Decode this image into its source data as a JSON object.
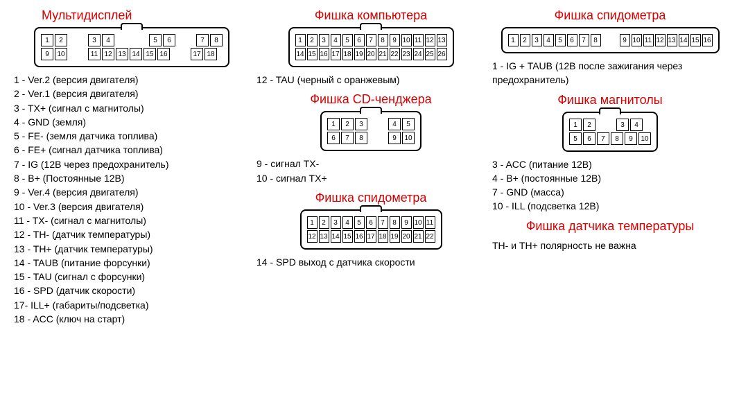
{
  "colors": {
    "title": "#d80000",
    "text": "#000000",
    "bg": "#ffffff"
  },
  "fonts": {
    "title_size_pt": 14,
    "body_size_pt": 11
  },
  "multidisplay": {
    "title": "Мультидисплей",
    "connector": {
      "type": "connector",
      "rows": [
        [
          "1",
          "2",
          "",
          "3",
          "4",
          "",
          "",
          "5",
          "6",
          "",
          "7",
          "8"
        ],
        [
          "9",
          "10",
          "",
          "11",
          "12",
          "13",
          "14",
          "15",
          "16",
          "",
          "17",
          "18"
        ]
      ],
      "row_gaps": [
        [
          2,
          6,
          9
        ],
        [
          2,
          9
        ]
      ]
    },
    "pins": [
      "1 - Ver.2 (версия двигателя)",
      "2 - Ver.1 (версия двигателя)",
      "3 - TX+ (сигнал с магнитолы)",
      "4 - GND (земля)",
      "5 - FE- (земля датчика топлива)",
      "6 - FE+ (сигнал датчика топлива)",
      "7 - IG (12В через предохранитель)",
      "8 - B+ (Постоянные 12В)",
      "9 - Ver.4 (версия двигателя)",
      "10 - Ver.3 (версия двигателя)",
      "11 - TX- (сигнал с магнитолы)",
      "12 - TH- (датчик температуры)",
      "13 - TH+ (датчик температуры)",
      "14 - TAUB (питание форсунки)",
      "15 - TAU (сигнал с форсунки)",
      "16 - SPD (датчик скорости)",
      "17- ILL+ (габариты/подсветка)",
      "18 - ACC (ключ на старт)"
    ]
  },
  "computer": {
    "title": "Фишка компьютера",
    "connector": {
      "type": "connector",
      "rows": [
        [
          "1",
          "2",
          "3",
          "4",
          "5",
          "6",
          "7",
          "8",
          "9",
          "10",
          "11",
          "12",
          "13"
        ],
        [
          "14",
          "15",
          "16",
          "17",
          "18",
          "19",
          "20",
          "21",
          "22",
          "23",
          "24",
          "25",
          "26"
        ]
      ]
    },
    "pins": [
      "12 - TAU (черный с оранжевым)"
    ]
  },
  "cdchanger": {
    "title": "Фишка CD-ченджера",
    "connector": {
      "type": "connector",
      "rows": [
        [
          "1",
          "2",
          "3",
          "",
          "4",
          "5"
        ],
        [
          "6",
          "7",
          "8",
          "",
          "9",
          "10"
        ]
      ],
      "row_gaps": [
        [
          3
        ],
        [
          3
        ]
      ]
    },
    "pins": [
      "9 - сигнал TX-",
      "10 - сигнал TX+"
    ]
  },
  "speedo_b": {
    "title": "Фишка спидометра",
    "connector": {
      "type": "connector",
      "rows": [
        [
          "1",
          "2",
          "3",
          "4",
          "5",
          "6",
          "7",
          "8",
          "9",
          "10",
          "11"
        ],
        [
          "12",
          "13",
          "14",
          "15",
          "16",
          "17",
          "18",
          "19",
          "20",
          "21",
          "22"
        ]
      ]
    },
    "pins": [
      "14 - SPD выход с датчика скорости"
    ]
  },
  "speedo_a": {
    "title": "Фишка спидометра",
    "connector": {
      "type": "connector",
      "rows": [
        [
          "1",
          "2",
          "3",
          "4",
          "5",
          "6",
          "7",
          "8",
          "",
          "9",
          "10",
          "11",
          "12",
          "13",
          "14",
          "15",
          "16"
        ]
      ],
      "row_gaps": [
        [
          8
        ]
      ]
    },
    "pins": [
      "1 - IG + TAUB (12В после зажигания через предохранитель)"
    ]
  },
  "radio": {
    "title": "Фишка магнитолы",
    "connector": {
      "type": "connector",
      "rows": [
        [
          "1",
          "2",
          "",
          "3",
          "4"
        ],
        [
          "5",
          "6",
          "7",
          "8",
          "9",
          "10"
        ]
      ],
      "row_gaps": [
        [
          2
        ],
        []
      ]
    },
    "pins": [
      "3 - ACC (питание 12В)",
      "4 - B+ (постоянные 12В)",
      "7 - GND (масса)",
      "10 - ILL (подсветка 12В)"
    ]
  },
  "tempsensor": {
    "title": "Фишка датчика температуры",
    "note": "TH- и TH+ полярность не важна"
  }
}
